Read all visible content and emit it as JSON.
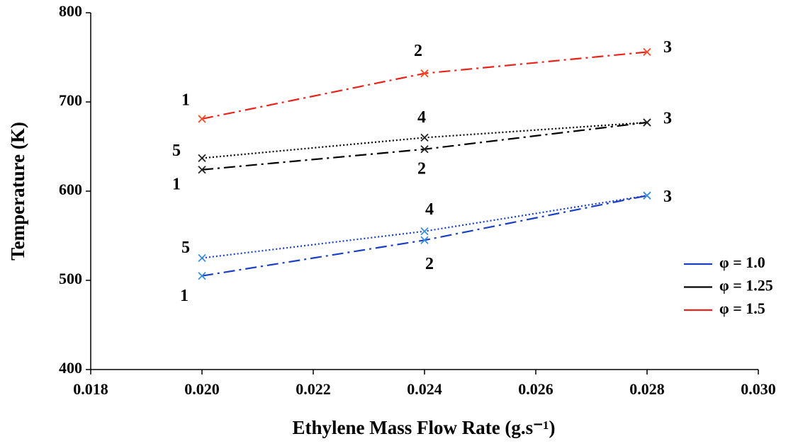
{
  "chart_data": {
    "type": "line",
    "x_label": "Ethylene Mass Flow Rate (g.s⁻¹)",
    "y_label": "Temperature (K)",
    "x": [
      0.02,
      0.024,
      0.028
    ],
    "xlim": [
      0.018,
      0.03
    ],
    "xticks": [
      0.018,
      {
        "value": 0.02,
        "label": "0.020"
      },
      0.022,
      0.024,
      0.026,
      0.028,
      {
        "value": 0.03,
        "label": "0.030"
      }
    ],
    "ylim": [
      400,
      800
    ],
    "yticks": [
      400,
      500,
      600,
      700,
      800
    ],
    "grid": false,
    "legend": "right",
    "series": [
      {
        "name": "φ = 1.0",
        "color": "#1a3fc4",
        "marker_color": "#3b8fd9",
        "lines": [
          {
            "style": "dashdot",
            "values": [
              505,
              545,
              595
            ],
            "point_labels": [
              "1",
              "2",
              "3"
            ]
          },
          {
            "style": "dotted",
            "values": [
              525,
              555,
              595
            ],
            "point_labels": [
              "5",
              "4",
              null
            ]
          }
        ]
      },
      {
        "name": "φ = 1.25",
        "color": "#000000",
        "marker_color": "#222222",
        "lines": [
          {
            "style": "dashdot",
            "values": [
              624,
              647,
              677
            ],
            "point_labels": [
              "1",
              "2",
              "3"
            ]
          },
          {
            "style": "dotted",
            "values": [
              637,
              660,
              677
            ],
            "point_labels": [
              "5",
              "4",
              null
            ]
          }
        ]
      },
      {
        "name": "φ = 1.5",
        "color": "#e8231a",
        "marker_color": "#f0502a",
        "lines": [
          {
            "style": "dashdot",
            "values": [
              681,
              732,
              756
            ],
            "point_labels": [
              "1",
              "2",
              "3"
            ]
          }
        ]
      }
    ]
  }
}
